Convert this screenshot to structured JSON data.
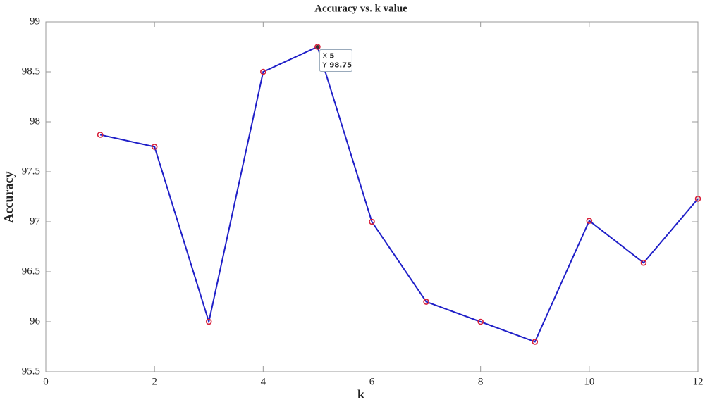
{
  "chart_data": {
    "type": "line",
    "title": "Accuracy vs. k value",
    "x_label": "k",
    "y_label": "Accuracy",
    "x": [
      1,
      2,
      3,
      4,
      5,
      6,
      7,
      8,
      9,
      10,
      11,
      12
    ],
    "series": [
      {
        "color": "#1f1fc8",
        "marker_color": "#d8203a",
        "values": [
          97.87,
          97.75,
          96.0,
          98.5,
          98.75,
          97.0,
          96.2,
          96.0,
          95.8,
          97.01,
          96.59,
          97.23
        ]
      }
    ],
    "xlim": [
      0,
      12
    ],
    "xticks": [
      0,
      2,
      4,
      6,
      8,
      10,
      12
    ],
    "ylim": [
      95.5,
      99
    ],
    "yticks": [
      95.5,
      96,
      96.5,
      97,
      97.5,
      98,
      98.5,
      99
    ],
    "grid": false,
    "datatip": {
      "x_label": "X",
      "x": 5,
      "y_label": "Y",
      "y": 98.75
    }
  }
}
